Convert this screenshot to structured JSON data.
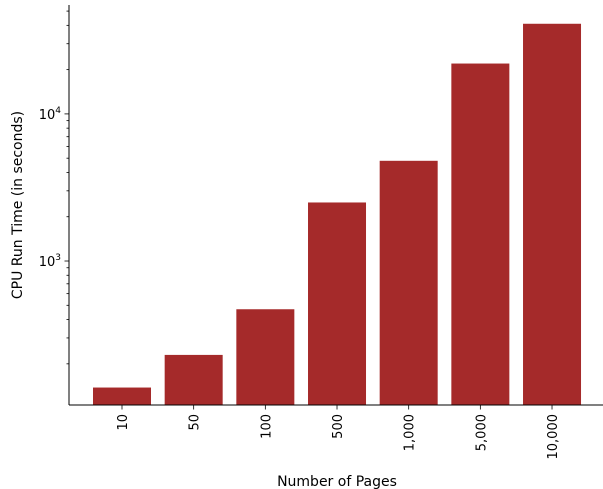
{
  "chart_data": {
    "type": "bar",
    "xlabel": "Number of Pages",
    "ylabel": "CPU Run Time (in seconds)",
    "categories": [
      "10",
      "50",
      "100",
      "500",
      "1,000",
      "5,000",
      "10,000"
    ],
    "values": [
      138,
      230,
      470,
      2500,
      4800,
      22000,
      41000
    ],
    "y_scale": "log",
    "ylim": [
      105,
      55000
    ],
    "major_ticks": [
      {
        "value": 1000,
        "base": "10",
        "exp": "3"
      },
      {
        "value": 10000,
        "base": "10",
        "exp": "4"
      }
    ],
    "bar_color": "#a52a2a",
    "grid": false
  }
}
